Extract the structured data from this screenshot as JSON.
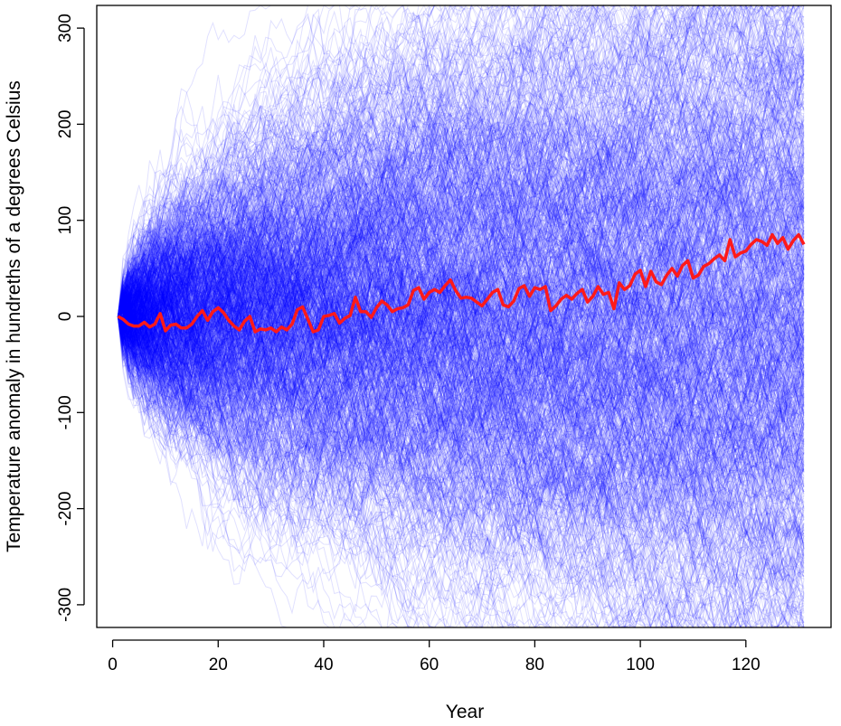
{
  "chart_data": {
    "type": "line",
    "title": "",
    "xlabel": "Year",
    "ylabel": "Temperature anomaly in hundreths of a degrees Celsius",
    "xlim": [
      1,
      131
    ],
    "ylim": [
      -325,
      325
    ],
    "x_ticks": [
      "0",
      "20",
      "40",
      "60",
      "80",
      "100",
      "120"
    ],
    "y_ticks": [
      "-300",
      "-200",
      "-100",
      "0",
      "100",
      "200",
      "300"
    ],
    "grid": false,
    "legend": "none",
    "ensemble": {
      "description_count": 1000,
      "color": "#0000ff",
      "opacity": 0.12,
      "step_sd": 18
    },
    "series": [
      {
        "color": "#ff1a1a",
        "x": [
          1,
          2,
          3,
          4,
          5,
          6,
          7,
          8,
          9,
          10,
          11,
          12,
          13,
          14,
          15,
          16,
          17,
          18,
          19,
          20,
          21,
          22,
          23,
          24,
          25,
          26,
          27,
          28,
          29,
          30,
          31,
          32,
          33,
          34,
          35,
          36,
          37,
          38,
          39,
          40,
          41,
          42,
          43,
          44,
          45,
          46,
          47,
          48,
          49,
          50,
          51,
          52,
          53,
          54,
          55,
          56,
          57,
          58,
          59,
          60,
          61,
          62,
          63,
          64,
          65,
          66,
          67,
          68,
          69,
          70,
          71,
          72,
          73,
          74,
          75,
          76,
          77,
          78,
          79,
          80,
          81,
          82,
          83,
          84,
          85,
          86,
          87,
          88,
          89,
          90,
          91,
          92,
          93,
          94,
          95,
          96,
          97,
          98,
          99,
          100,
          101,
          102,
          103,
          104,
          105,
          106,
          107,
          108,
          109,
          110,
          111,
          112,
          113,
          114,
          115,
          116,
          117,
          118,
          119,
          120,
          121,
          122,
          123,
          124,
          125,
          126,
          127,
          128,
          129,
          130,
          131
        ],
        "y": [
          0,
          -3,
          -8,
          -10,
          -10,
          -6,
          -11,
          -8,
          3,
          -15,
          -9,
          -8,
          -12,
          -12,
          -8,
          0,
          6,
          -4,
          5,
          9,
          4,
          -4,
          -10,
          -14,
          -5,
          0,
          -16,
          -13,
          -14,
          -12,
          -16,
          -11,
          -14,
          -8,
          7,
          10,
          -3,
          -16,
          -14,
          0,
          1,
          3,
          -7,
          -2,
          1,
          20,
          5,
          5,
          -1,
          9,
          16,
          12,
          5,
          8,
          9,
          12,
          27,
          30,
          18,
          25,
          28,
          25,
          32,
          38,
          27,
          19,
          20,
          19,
          15,
          11,
          18,
          25,
          28,
          12,
          10,
          16,
          29,
          32,
          21,
          30,
          28,
          31,
          6,
          11,
          18,
          22,
          18,
          24,
          28,
          15,
          21,
          31,
          23,
          25,
          8,
          35,
          28,
          32,
          44,
          48,
          31,
          47,
          36,
          33,
          43,
          50,
          42,
          53,
          58,
          40,
          43,
          52,
          55,
          60,
          64,
          58,
          80,
          62,
          66,
          68,
          75,
          80,
          78,
          74,
          85,
          76,
          82,
          70,
          79,
          85,
          75
        ]
      }
    ]
  }
}
